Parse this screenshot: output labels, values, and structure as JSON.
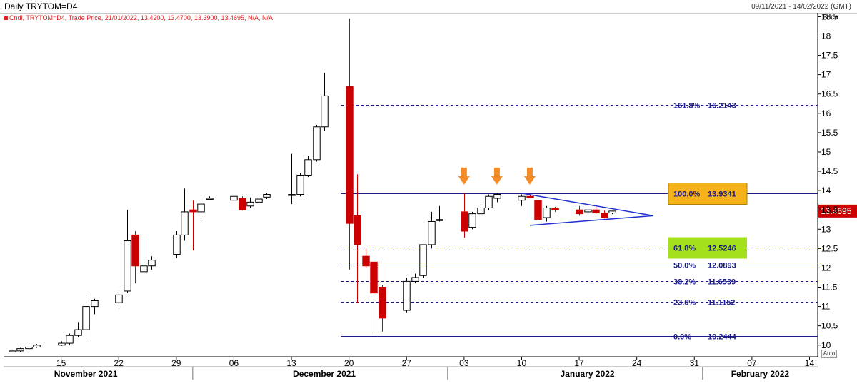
{
  "header": {
    "title": "Daily TRYTOM=D4",
    "date_range": "09/11/2021 - 14/02/2022 (GMT)",
    "legend": "Cndl, TRYTOM=D4, Trade Price, 21/01/2022, 13.4200, 13.4700, 13.3900, 13.4695, N/A, N/A",
    "price_axis_label": "Price",
    "auto_label": "Auto"
  },
  "colors": {
    "up": "#ffffff",
    "down": "#cc0000",
    "fib_line": "#1a1a8a",
    "triangle": "#1f2fd0",
    "arrow": "#f28c28",
    "highlight_orange": "#f5b21a",
    "highlight_green": "#a4e01c",
    "last_price_bg": "#cc0000"
  },
  "chart_data": {
    "type": "candlestick",
    "ylim": [
      9.7,
      18.6
    ],
    "y_ticks": [
      10,
      10.5,
      11,
      11.5,
      12,
      12.5,
      13,
      13.5,
      14,
      14.5,
      15,
      15.5,
      16,
      16.5,
      17,
      17.5,
      18,
      18.5
    ],
    "x_ticks": [
      {
        "label": "15",
        "date": "2021-11-15"
      },
      {
        "label": "22",
        "date": "2021-11-22"
      },
      {
        "label": "29",
        "date": "2021-11-29"
      },
      {
        "label": "06",
        "date": "2021-12-06"
      },
      {
        "label": "13",
        "date": "2021-12-13"
      },
      {
        "label": "20",
        "date": "2021-12-20"
      },
      {
        "label": "27",
        "date": "2021-12-27"
      },
      {
        "label": "03",
        "date": "2022-01-03"
      },
      {
        "label": "10",
        "date": "2022-01-10"
      },
      {
        "label": "17",
        "date": "2022-01-17"
      },
      {
        "label": "24",
        "date": "2022-01-24"
      },
      {
        "label": "31",
        "date": "2022-01-31"
      },
      {
        "label": "07",
        "date": "2022-02-07"
      },
      {
        "label": "14",
        "date": "2022-02-14"
      }
    ],
    "months": [
      {
        "label": "November 2021",
        "date": "2021-11-18"
      },
      {
        "label": "December 2021",
        "date": "2021-12-17"
      },
      {
        "label": "January 2022",
        "date": "2022-01-18"
      },
      {
        "label": "February 2022",
        "date": "2022-02-08"
      }
    ],
    "month_separators": [
      "2021-12-01",
      "2022-01-01",
      "2022-02-01"
    ],
    "candles": [
      {
        "date": "2021-11-09",
        "o": 9.83,
        "h": 9.86,
        "l": 9.82,
        "c": 9.85
      },
      {
        "date": "2021-11-10",
        "o": 9.85,
        "h": 9.93,
        "l": 9.83,
        "c": 9.91
      },
      {
        "date": "2021-11-11",
        "o": 9.91,
        "h": 9.97,
        "l": 9.89,
        "c": 9.95
      },
      {
        "date": "2021-11-12",
        "o": 9.95,
        "h": 10.03,
        "l": 9.93,
        "c": 10.0
      },
      {
        "date": "2021-11-15",
        "o": 10.0,
        "h": 10.1,
        "l": 9.98,
        "c": 10.05
      },
      {
        "date": "2021-11-16",
        "o": 10.05,
        "h": 10.3,
        "l": 10.0,
        "c": 10.25
      },
      {
        "date": "2021-11-17",
        "o": 10.25,
        "h": 10.6,
        "l": 10.2,
        "c": 10.4
      },
      {
        "date": "2021-11-18",
        "o": 10.4,
        "h": 11.3,
        "l": 10.15,
        "c": 11.0
      },
      {
        "date": "2021-11-19",
        "o": 11.0,
        "h": 11.2,
        "l": 10.8,
        "c": 11.15
      },
      {
        "date": "2021-11-22",
        "o": 11.1,
        "h": 11.4,
        "l": 10.95,
        "c": 11.3
      },
      {
        "date": "2021-11-23",
        "o": 11.4,
        "h": 13.5,
        "l": 11.35,
        "c": 12.7
      },
      {
        "date": "2021-11-24",
        "o": 12.85,
        "h": 12.95,
        "l": 11.6,
        "c": 12.05
      },
      {
        "date": "2021-11-25",
        "o": 11.9,
        "h": 12.15,
        "l": 11.85,
        "c": 12.05
      },
      {
        "date": "2021-11-26",
        "o": 12.05,
        "h": 12.3,
        "l": 11.95,
        "c": 12.2
      },
      {
        "date": "2021-11-29",
        "o": 12.35,
        "h": 12.95,
        "l": 12.25,
        "c": 12.85
      },
      {
        "date": "2021-11-30",
        "o": 12.85,
        "h": 14.05,
        "l": 12.7,
        "c": 13.45
      },
      {
        "date": "2021-12-01",
        "o": 13.5,
        "h": 13.75,
        "l": 12.45,
        "c": 13.45
      },
      {
        "date": "2021-12-02",
        "o": 13.45,
        "h": 13.9,
        "l": 13.3,
        "c": 13.65
      },
      {
        "date": "2021-12-03",
        "o": 13.8,
        "h": 13.85,
        "l": 13.8,
        "c": 13.8
      },
      {
        "date": "2021-12-06",
        "o": 13.75,
        "h": 13.9,
        "l": 13.68,
        "c": 13.85
      },
      {
        "date": "2021-12-07",
        "o": 13.8,
        "h": 13.85,
        "l": 13.48,
        "c": 13.5
      },
      {
        "date": "2021-12-08",
        "o": 13.6,
        "h": 13.82,
        "l": 13.55,
        "c": 13.7
      },
      {
        "date": "2021-12-09",
        "o": 13.7,
        "h": 13.82,
        "l": 13.66,
        "c": 13.78
      },
      {
        "date": "2021-12-10",
        "o": 13.83,
        "h": 13.93,
        "l": 13.78,
        "c": 13.9
      },
      {
        "date": "2021-12-13",
        "o": 13.9,
        "h": 14.95,
        "l": 13.65,
        "c": 13.9
      },
      {
        "date": "2021-12-14",
        "o": 13.9,
        "h": 14.45,
        "l": 13.85,
        "c": 14.4
      },
      {
        "date": "2021-12-15",
        "o": 14.4,
        "h": 14.9,
        "l": 14.35,
        "c": 14.8
      },
      {
        "date": "2021-12-16",
        "o": 14.8,
        "h": 15.7,
        "l": 14.75,
        "c": 15.65
      },
      {
        "date": "2021-12-17",
        "o": 15.65,
        "h": 17.05,
        "l": 15.55,
        "c": 16.45
      },
      {
        "date": "2021-12-20",
        "o": 16.7,
        "h": 18.45,
        "l": 11.95,
        "c": 13.15
      },
      {
        "date": "2021-12-21",
        "o": 13.35,
        "h": 14.42,
        "l": 11.1,
        "c": 12.6
      },
      {
        "date": "2021-12-22",
        "o": 12.3,
        "h": 12.5,
        "l": 12.0,
        "c": 12.05
      },
      {
        "date": "2021-12-23",
        "o": 12.15,
        "h": 12.15,
        "l": 10.25,
        "c": 11.35
      },
      {
        "date": "2021-12-24",
        "o": 11.5,
        "h": 11.55,
        "l": 10.35,
        "c": 10.7
      },
      {
        "date": "2021-12-27",
        "o": 10.9,
        "h": 11.75,
        "l": 10.85,
        "c": 11.65
      },
      {
        "date": "2021-12-28",
        "o": 11.65,
        "h": 11.85,
        "l": 11.6,
        "c": 11.75
      },
      {
        "date": "2021-12-29",
        "o": 11.8,
        "h": 12.6,
        "l": 11.75,
        "c": 12.6
      },
      {
        "date": "2021-12-30",
        "o": 12.6,
        "h": 13.45,
        "l": 12.5,
        "c": 13.2
      },
      {
        "date": "2021-12-31",
        "o": 13.25,
        "h": 13.6,
        "l": 13.2,
        "c": 13.25
      },
      {
        "date": "2022-01-03",
        "o": 13.45,
        "h": 13.93,
        "l": 12.78,
        "c": 12.95
      },
      {
        "date": "2022-01-04",
        "o": 13.05,
        "h": 13.45,
        "l": 13.0,
        "c": 13.4
      },
      {
        "date": "2022-01-05",
        "o": 13.4,
        "h": 13.65,
        "l": 13.35,
        "c": 13.55
      },
      {
        "date": "2022-01-06",
        "o": 13.55,
        "h": 13.9,
        "l": 13.5,
        "c": 13.85
      },
      {
        "date": "2022-01-07",
        "o": 13.8,
        "h": 13.93,
        "l": 13.7,
        "c": 13.9
      },
      {
        "date": "2022-01-10",
        "o": 13.75,
        "h": 13.9,
        "l": 13.6,
        "c": 13.85
      },
      {
        "date": "2022-01-11",
        "o": 13.85,
        "h": 13.9,
        "l": 13.8,
        "c": 13.82
      },
      {
        "date": "2022-01-12",
        "o": 13.75,
        "h": 13.8,
        "l": 13.2,
        "c": 13.25
      },
      {
        "date": "2022-01-13",
        "o": 13.3,
        "h": 13.6,
        "l": 13.2,
        "c": 13.55
      },
      {
        "date": "2022-01-14",
        "o": 13.55,
        "h": 13.58,
        "l": 13.45,
        "c": 13.5
      },
      {
        "date": "2022-01-17",
        "o": 13.5,
        "h": 13.6,
        "l": 13.35,
        "c": 13.4
      },
      {
        "date": "2022-01-18",
        "o": 13.45,
        "h": 13.55,
        "l": 13.38,
        "c": 13.5
      },
      {
        "date": "2022-01-19",
        "o": 13.5,
        "h": 13.58,
        "l": 13.4,
        "c": 13.42
      },
      {
        "date": "2022-01-20",
        "o": 13.42,
        "h": 13.48,
        "l": 13.28,
        "c": 13.3
      },
      {
        "date": "2022-01-21",
        "o": 13.42,
        "h": 13.47,
        "l": 13.39,
        "c": 13.4695
      }
    ],
    "fibonacci": [
      {
        "label": "161.8%",
        "value": 16.2143,
        "value_text": "16.2143",
        "highlight": "none"
      },
      {
        "label": "100.0%",
        "value": 13.9341,
        "value_text": "13.9341",
        "highlight": "orange"
      },
      {
        "label": "61.8%",
        "value": 12.5246,
        "value_text": "12.5246",
        "highlight": "green"
      },
      {
        "label": "50.0%",
        "value": 12.0893,
        "value_text": "12.0893",
        "highlight": "none"
      },
      {
        "label": "38.2%",
        "value": 11.6539,
        "value_text": "11.6539",
        "highlight": "none"
      },
      {
        "label": "23.6%",
        "value": 11.1152,
        "value_text": "11.1152",
        "highlight": "none"
      },
      {
        "label": "0.0%",
        "value": 10.2444,
        "value_text": "10.2444",
        "highlight": "none"
      }
    ],
    "fib_start_date": "2021-12-19",
    "triangle": {
      "upper": [
        [
          "2022-01-10",
          13.93
        ],
        [
          "2022-01-26",
          13.35
        ]
      ],
      "lower": [
        [
          "2022-01-11",
          13.1
        ],
        [
          "2022-01-26",
          13.35
        ]
      ]
    },
    "arrows": [
      {
        "date": "2022-01-03",
        "value": 13.93
      },
      {
        "date": "2022-01-07",
        "value": 13.93
      },
      {
        "date": "2022-01-11",
        "value": 13.93
      }
    ],
    "last_price": {
      "value": 13.4695,
      "text": "13.4695"
    }
  }
}
